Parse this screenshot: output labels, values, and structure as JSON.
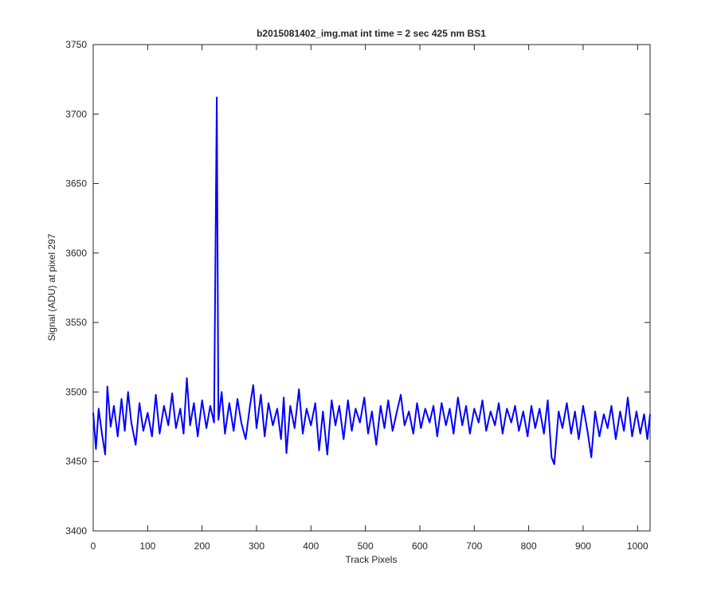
{
  "chart_data": {
    "type": "line",
    "title": "b2015081402_img.mat int time = 2 sec  425 nm BS1",
    "xlabel": "Track Pixels",
    "ylabel": "Signal (ADU) at pixel 297",
    "color": "#0000ff",
    "x": [
      0,
      5,
      10,
      16,
      22,
      26,
      32,
      38,
      45,
      52,
      58,
      64,
      70,
      78,
      85,
      92,
      100,
      108,
      115,
      122,
      130,
      138,
      145,
      152,
      160,
      166,
      172,
      178,
      185,
      192,
      200,
      208,
      215,
      222,
      227,
      230,
      236,
      242,
      250,
      258,
      265,
      272,
      280,
      288,
      294,
      300,
      308,
      315,
      322,
      330,
      338,
      345,
      350,
      355,
      362,
      370,
      378,
      385,
      392,
      400,
      408,
      415,
      422,
      430,
      438,
      445,
      452,
      460,
      468,
      475,
      482,
      490,
      498,
      505,
      512,
      520,
      528,
      535,
      542,
      550,
      558,
      565,
      572,
      580,
      588,
      595,
      602,
      610,
      618,
      625,
      632,
      640,
      648,
      655,
      662,
      670,
      678,
      685,
      692,
      700,
      708,
      715,
      722,
      730,
      738,
      745,
      752,
      760,
      768,
      775,
      782,
      790,
      798,
      805,
      812,
      820,
      828,
      835,
      842,
      847,
      855,
      862,
      870,
      878,
      885,
      892,
      900,
      908,
      915,
      922,
      930,
      938,
      945,
      952,
      960,
      968,
      975,
      982,
      990,
      998,
      1005,
      1012,
      1018,
      1023
    ],
    "values": [
      3485,
      3459,
      3488,
      3470,
      3455,
      3504,
      3475,
      3490,
      3468,
      3495,
      3472,
      3500,
      3478,
      3462,
      3492,
      3472,
      3485,
      3468,
      3498,
      3470,
      3490,
      3476,
      3499,
      3474,
      3488,
      3470,
      3510,
      3476,
      3492,
      3468,
      3494,
      3474,
      3490,
      3478,
      3712,
      3480,
      3500,
      3470,
      3492,
      3472,
      3495,
      3478,
      3466,
      3490,
      3505,
      3474,
      3498,
      3468,
      3492,
      3476,
      3488,
      3466,
      3496,
      3456,
      3490,
      3474,
      3502,
      3470,
      3488,
      3476,
      3492,
      3458,
      3486,
      3455,
      3494,
      3476,
      3490,
      3466,
      3494,
      3472,
      3488,
      3478,
      3496,
      3470,
      3486,
      3462,
      3490,
      3474,
      3494,
      3472,
      3486,
      3498,
      3476,
      3486,
      3470,
      3492,
      3474,
      3488,
      3478,
      3490,
      3468,
      3492,
      3476,
      3488,
      3470,
      3496,
      3476,
      3490,
      3470,
      3488,
      3478,
      3494,
      3472,
      3486,
      3476,
      3492,
      3470,
      3488,
      3478,
      3490,
      3472,
      3486,
      3468,
      3490,
      3474,
      3488,
      3470,
      3494,
      3453,
      3448,
      3486,
      3474,
      3492,
      3470,
      3486,
      3466,
      3490,
      3472,
      3453,
      3486,
      3468,
      3484,
      3474,
      3490,
      3466,
      3486,
      3472,
      3496,
      3468,
      3486,
      3470,
      3484,
      3466,
      3484
    ],
    "xlim": [
      0,
      1023
    ],
    "ylim": [
      3400,
      3750
    ],
    "xticks": [
      0,
      100,
      200,
      300,
      400,
      500,
      600,
      700,
      800,
      900,
      1000
    ],
    "yticks": [
      3400,
      3450,
      3500,
      3550,
      3600,
      3650,
      3700,
      3750
    ]
  }
}
